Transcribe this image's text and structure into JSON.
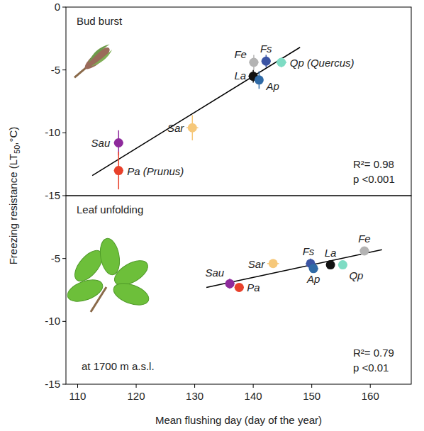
{
  "chart_data": [
    {
      "type": "scatter",
      "title": "Bud burst",
      "ylabel": "Freezing resistance (LT50,°C)",
      "xlim": [
        108,
        167
      ],
      "ylim": [
        -15,
        0
      ],
      "yticks": [
        -15,
        -10,
        -5,
        0
      ],
      "tick_labels": "y",
      "annotations": [
        "R²= 0.98",
        "p <0.001"
      ],
      "fit": {
        "x": [
          112.5,
          148
        ],
        "y": [
          -13.4,
          -3.2
        ]
      },
      "series": [
        {
          "name": "Sau",
          "color": "#8e2a9c",
          "x": [
            117
          ],
          "values": [
            -10.8
          ],
          "x_error": [
            0.8
          ],
          "y_error": [
            1.0
          ]
        },
        {
          "name": "Pa (Prunus)",
          "color": "#e8412b",
          "x": [
            117
          ],
          "values": [
            -13.0
          ],
          "x_error": [
            0.8
          ],
          "y_error": [
            1.5
          ]
        },
        {
          "name": "Sar",
          "color": "#f6c87a",
          "x": [
            129.6
          ],
          "values": [
            -9.6
          ],
          "x_error": [
            1.0
          ],
          "y_error": [
            1.0
          ]
        },
        {
          "name": "Fe",
          "color": "#b3b3b3",
          "x": [
            140.1
          ],
          "values": [
            -4.4
          ],
          "x_error": [
            0.8
          ],
          "y_error": [
            0.6
          ]
        },
        {
          "name": "Fs",
          "color": "#3b54a4",
          "x": [
            142.2
          ],
          "values": [
            -4.3
          ],
          "x_error": [
            0.8
          ],
          "y_error": [
            0.5
          ]
        },
        {
          "name": "Qp (Quercus)",
          "color": "#7edcc4",
          "x": [
            144.8
          ],
          "values": [
            -4.4
          ],
          "x_error": [
            0.9
          ],
          "y_error": [
            0.4
          ]
        },
        {
          "name": "La",
          "color": "#111111",
          "x": [
            140.0
          ],
          "values": [
            -5.5
          ],
          "x_error": [
            0.8
          ],
          "y_error": [
            0.5
          ]
        },
        {
          "name": "Ap",
          "color": "#2f6aa6",
          "x": [
            141.0
          ],
          "values": [
            -5.8
          ],
          "x_error": [
            0.7
          ],
          "y_error": [
            0.7
          ]
        }
      ]
    },
    {
      "type": "scatter",
      "title": "Leaf unfolding",
      "xlabel": "Mean flushing day (day of the year)",
      "xlim": [
        108,
        167
      ],
      "xticks": [
        110,
        120,
        130,
        140,
        150,
        160
      ],
      "ylim": [
        -15,
        0
      ],
      "yticks": [
        -15,
        -10,
        -5
      ],
      "annotations": [
        "at 1700 m a.s.l.",
        "R²= 0.79",
        "p <0.01"
      ],
      "fit": {
        "x": [
          132,
          162
        ],
        "y": [
          -7.3,
          -4.3
        ]
      },
      "series": [
        {
          "name": "Sau",
          "color": "#8e2a9c",
          "x": [
            136.0
          ],
          "values": [
            -7.0
          ],
          "x_error": [
            0.8
          ],
          "y_error": [
            0.4
          ]
        },
        {
          "name": "Pa",
          "color": "#e8412b",
          "x": [
            137.6
          ],
          "values": [
            -7.3
          ],
          "x_error": [
            0.8
          ],
          "y_error": [
            0.3
          ]
        },
        {
          "name": "Sar",
          "color": "#f6c87a",
          "x": [
            143.4
          ],
          "values": [
            -5.4
          ],
          "x_error": [
            1.0
          ],
          "y_error": [
            0.3
          ]
        },
        {
          "name": "Fs",
          "color": "#3b54a4",
          "x": [
            149.8
          ],
          "values": [
            -5.4
          ],
          "x_error": [
            0.8
          ],
          "y_error": [
            0.4
          ]
        },
        {
          "name": "Ap",
          "color": "#2f6aa6",
          "x": [
            150.3
          ],
          "values": [
            -5.8
          ],
          "x_error": [
            0.8
          ],
          "y_error": [
            0.3
          ]
        },
        {
          "name": "La",
          "color": "#111111",
          "x": [
            153.2
          ],
          "values": [
            -5.5
          ],
          "x_error": [
            0.7
          ],
          "y_error": [
            0.3
          ]
        },
        {
          "name": "Qp",
          "color": "#7edcc4",
          "x": [
            155.3
          ],
          "values": [
            -5.5
          ],
          "x_error": [
            0.8
          ],
          "y_error": [
            0.3
          ]
        },
        {
          "name": "Fe",
          "color": "#b3b3b3",
          "x": [
            159.0
          ],
          "values": [
            -4.4
          ],
          "x_error": [
            0.8
          ],
          "y_error": [
            0.3
          ]
        }
      ]
    }
  ]
}
